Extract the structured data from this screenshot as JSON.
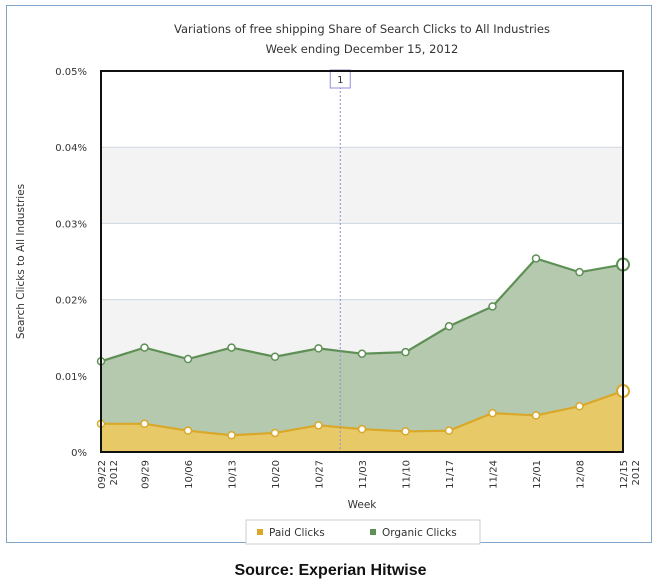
{
  "chart_data": {
    "type": "area",
    "title": "Variations of free shipping Share of Search Clicks to All Industries",
    "subtitle": "Week ending December 15, 2012",
    "xlabel": "Week",
    "ylabel": "Search Clicks to All Industries",
    "categories": [
      "09/22 2012",
      "09/29",
      "10/06",
      "10/13",
      "10/20",
      "10/27",
      "11/03",
      "11/10",
      "11/17",
      "11/24",
      "12/01",
      "12/08",
      "12/15 2012"
    ],
    "tick_labels": [
      [
        "09/22",
        "2012"
      ],
      [
        "09/29"
      ],
      [
        "10/06"
      ],
      [
        "10/13"
      ],
      [
        "10/20"
      ],
      [
        "10/27"
      ],
      [
        "11/03"
      ],
      [
        "11/10"
      ],
      [
        "11/17"
      ],
      [
        "11/24"
      ],
      [
        "12/01"
      ],
      [
        "12/08"
      ],
      [
        "12/15",
        "2012"
      ]
    ],
    "ylim": [
      0,
      0.05
    ],
    "yticks": [
      0,
      0.01,
      0.02,
      0.03,
      0.04,
      0.05
    ],
    "ytick_labels": [
      "0%",
      "0.01%",
      "0.02%",
      "0.03%",
      "0.04%",
      "0.05%"
    ],
    "stacked": true,
    "series": [
      {
        "name": "Paid Clicks",
        "color": "#e8c968",
        "line_color": "#d9a829",
        "values": [
          0.0037,
          0.0037,
          0.0028,
          0.0022,
          0.0025,
          0.0035,
          0.003,
          0.0027,
          0.0028,
          0.0051,
          0.0048,
          0.006,
          0.008
        ]
      },
      {
        "name": "Organic Clicks",
        "color": "#b5c9ae",
        "line_color": "#5e8f55",
        "values": [
          0.0082,
          0.01,
          0.0094,
          0.0115,
          0.01,
          0.0101,
          0.0099,
          0.0104,
          0.0137,
          0.014,
          0.0206,
          0.0176,
          0.0166
        ]
      }
    ],
    "annotation": {
      "label": "1",
      "x_between": [
        "10/27",
        "11/03"
      ]
    },
    "grid": true,
    "legend": "bottom"
  },
  "source": "Source: Experian Hitwise"
}
